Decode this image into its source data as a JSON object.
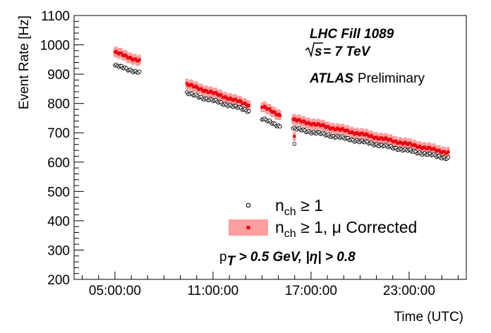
{
  "chart_data": {
    "type": "scatter",
    "xlabel": "Time (UTC)",
    "ylabel": "Event Rate [Hz]",
    "x_tick_labels": [
      "05:00:00",
      "11:00:00",
      "17:00:00",
      "23:00:00"
    ],
    "x_tick_hours": [
      5,
      11,
      17,
      23
    ],
    "xlim_hours": [
      2.5,
      26.5
    ],
    "ylim": [
      200,
      1100
    ],
    "y_ticks": [
      200,
      300,
      400,
      500,
      600,
      700,
      800,
      900,
      1000,
      1100
    ],
    "grid": false,
    "legend_position": "bottom-right",
    "annotations": {
      "fill": "LHC Fill 1089",
      "energy_sqrt": "s",
      "energy_value": " = 7 TeV",
      "atlas": "ATLAS",
      "preliminary": "Preliminary"
    },
    "cut_label": {
      "p": "p",
      "sub": "T",
      "rest": " > 0.5 GeV, |η| > 0.8"
    },
    "series": [
      {
        "name_main": "n",
        "name_sub": "ch",
        "name_rest": " ≥ 1",
        "marker": "open-circle",
        "color": "#000000",
        "segments": [
          {
            "x": [
              5.0,
              6.5
            ],
            "y": [
              930,
              905
            ]
          },
          {
            "x": [
              9.4,
              13.2
            ],
            "y": [
              835,
              775
            ]
          },
          {
            "x": [
              14.0,
              15.1
            ],
            "y": [
              748,
              722
            ]
          },
          {
            "x": [
              15.9,
              25.4
            ],
            "y": [
              715,
              613
            ]
          }
        ],
        "points": [
          {
            "x": 15.98,
            "y": 662
          }
        ]
      },
      {
        "name_main": "n",
        "name_sub": "ch",
        "name_rest": " ≥ 1, μ Corrected",
        "marker": "filled-square-with-band",
        "color": "#e8000b",
        "band_color": "#ff9e9e",
        "segments": [
          {
            "x": [
              5.0,
              6.5
            ],
            "y": [
              975,
              945
            ]
          },
          {
            "x": [
              9.4,
              13.2
            ],
            "y": [
              865,
              795
            ]
          },
          {
            "x": [
              14.0,
              15.1
            ],
            "y": [
              790,
              760
            ]
          },
          {
            "x": [
              15.9,
              25.4
            ],
            "y": [
              745,
              632
            ]
          }
        ],
        "points": [
          {
            "x": 15.98,
            "y": 688
          }
        ]
      }
    ]
  }
}
